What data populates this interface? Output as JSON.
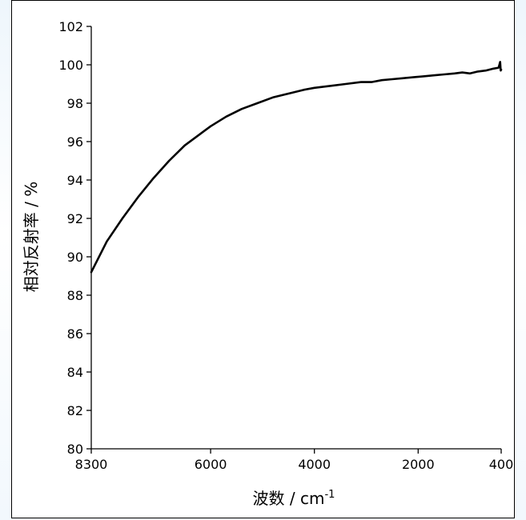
{
  "chart_data": {
    "type": "line",
    "title": "",
    "xlabel": "波数 / cm",
    "xlabel_sup": "-1",
    "ylabel": "相対反射率 / %",
    "xlim": [
      8300,
      400
    ],
    "ylim": [
      80,
      102
    ],
    "x_reversed": true,
    "x_ticks": [
      8300,
      6000,
      4000,
      2000,
      400
    ],
    "y_ticks": [
      80,
      82,
      84,
      86,
      88,
      90,
      92,
      94,
      96,
      98,
      100,
      102
    ],
    "grid": false,
    "legend": "none",
    "line_color": "#000000",
    "series": [
      {
        "x": [
          8300,
          8000,
          7700,
          7400,
          7100,
          6800,
          6500,
          6200,
          6000,
          5700,
          5400,
          5100,
          4800,
          4500,
          4200,
          4000,
          3700,
          3400,
          3100,
          2900,
          2700,
          2500,
          2300,
          2100,
          1900,
          1700,
          1500,
          1300,
          1150,
          1000,
          850,
          700,
          550,
          450,
          420,
          410,
          400
        ],
        "y": [
          89.2,
          90.8,
          92.0,
          93.1,
          94.1,
          95.0,
          95.8,
          96.4,
          96.8,
          97.3,
          97.7,
          98.0,
          98.3,
          98.5,
          98.7,
          98.8,
          98.9,
          99.0,
          99.1,
          99.1,
          99.2,
          99.25,
          99.3,
          99.35,
          99.4,
          99.45,
          99.5,
          99.55,
          99.6,
          99.55,
          99.65,
          99.7,
          99.8,
          99.85,
          100.15,
          99.7,
          99.75
        ]
      }
    ]
  }
}
